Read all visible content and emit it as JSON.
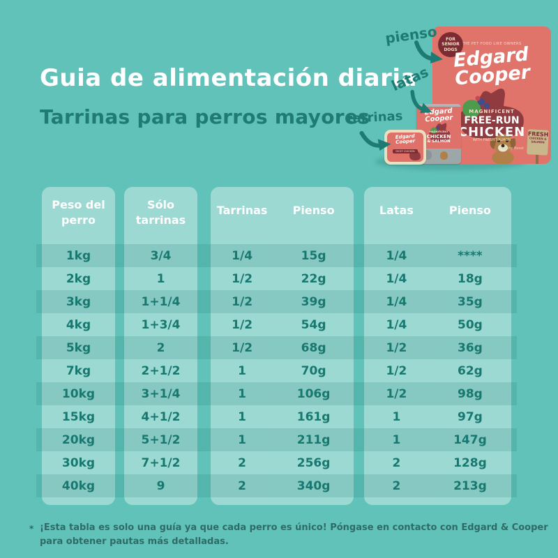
{
  "page": {
    "title": "Guia de alimentación diaria",
    "subtitle": "Tarrinas para perros mayores",
    "footnote_marker": "*",
    "footnote_line1": "¡Esta tabla es solo una guía ya que cada perro es único! Póngase en contacto con Edgard & Cooper",
    "footnote_line2": "para obtener pautas más detalladas."
  },
  "product_labels": {
    "pienso": "pienso",
    "latas": "latas",
    "tarrinas": "tarrinas"
  },
  "products": {
    "bag": {
      "badge": "FOR SENIOR DOGS",
      "tagline": "THE PET FOOD LIKE OWNERS",
      "brand_line1": "Edgard",
      "brand_line2": "Cooper",
      "descriptor": "MAGNIFICENT",
      "name_line1": "FREE-RUN",
      "name_line2": "CHICKEN",
      "name_line3": "WITH FRESH SALMON",
      "healthy": "Healthy Boost",
      "sign_line1": "FRESH",
      "sign_line2": "CHICKEN & SALMON"
    },
    "can": {
      "brand_line1": "Edgard",
      "brand_line2": "Cooper",
      "descriptor": "MAGNIFICENT",
      "name_line1": "CHICKEN",
      "name_line2": "& SALMON"
    },
    "tray": {
      "brand_line1": "Edgard",
      "brand_line2": "Cooper",
      "name": "DICEY CHICKEN"
    }
  },
  "table": {
    "col1_header_line1": "Peso del",
    "col1_header_line2": "perro",
    "col2_header_line1": "Sólo",
    "col2_header_line2": "tarrinas",
    "col3_header_a": "Tarrinas",
    "col3_header_b": "Pienso",
    "col4_header_a": "Latas",
    "col4_header_b": "Pienso",
    "rows": [
      {
        "weight": "1kg",
        "solo": "3/4",
        "tarrinas": "1/4",
        "pienso1": "15g",
        "latas": "1/4",
        "pienso2": "****"
      },
      {
        "weight": "2kg",
        "solo": "1",
        "tarrinas": "1/2",
        "pienso1": "22g",
        "latas": "1/4",
        "pienso2": "18g"
      },
      {
        "weight": "3kg",
        "solo": "1+1/4",
        "tarrinas": "1/2",
        "pienso1": "39g",
        "latas": "1/4",
        "pienso2": "35g"
      },
      {
        "weight": "4kg",
        "solo": "1+3/4",
        "tarrinas": "1/2",
        "pienso1": "54g",
        "latas": "1/4",
        "pienso2": "50g"
      },
      {
        "weight": "5kg",
        "solo": "2",
        "tarrinas": "1/2",
        "pienso1": "68g",
        "latas": "1/2",
        "pienso2": "36g"
      },
      {
        "weight": "7kg",
        "solo": "2+1/2",
        "tarrinas": "1",
        "pienso1": "70g",
        "latas": "1/2",
        "pienso2": "62g"
      },
      {
        "weight": "10kg",
        "solo": "3+1/4",
        "tarrinas": "1",
        "pienso1": "106g",
        "latas": "1/2",
        "pienso2": "98g"
      },
      {
        "weight": "15kg",
        "solo": "4+1/2",
        "tarrinas": "1",
        "pienso1": "161g",
        "latas": "1",
        "pienso2": "97g"
      },
      {
        "weight": "20kg",
        "solo": "5+1/2",
        "tarrinas": "1",
        "pienso1": "211g",
        "latas": "1",
        "pienso2": "147g"
      },
      {
        "weight": "30kg",
        "solo": "7+1/2",
        "tarrinas": "2",
        "pienso1": "256g",
        "latas": "2",
        "pienso2": "128g"
      },
      {
        "weight": "40kg",
        "solo": "9",
        "tarrinas": "2",
        "pienso1": "340g",
        "latas": "2",
        "pienso2": "213g"
      }
    ]
  },
  "colors": {
    "background": "#60C2B9",
    "title": "#FFFFFF",
    "accent_dark_teal": "#1E7B73",
    "table_box": "#9CD9D3",
    "table_stripe": "#8CCEC7",
    "table_text": "#17786F",
    "bag_coral": "#E0746B",
    "brand_dark_red": "#7D2B33",
    "footnote_text": "#2F6B66"
  }
}
